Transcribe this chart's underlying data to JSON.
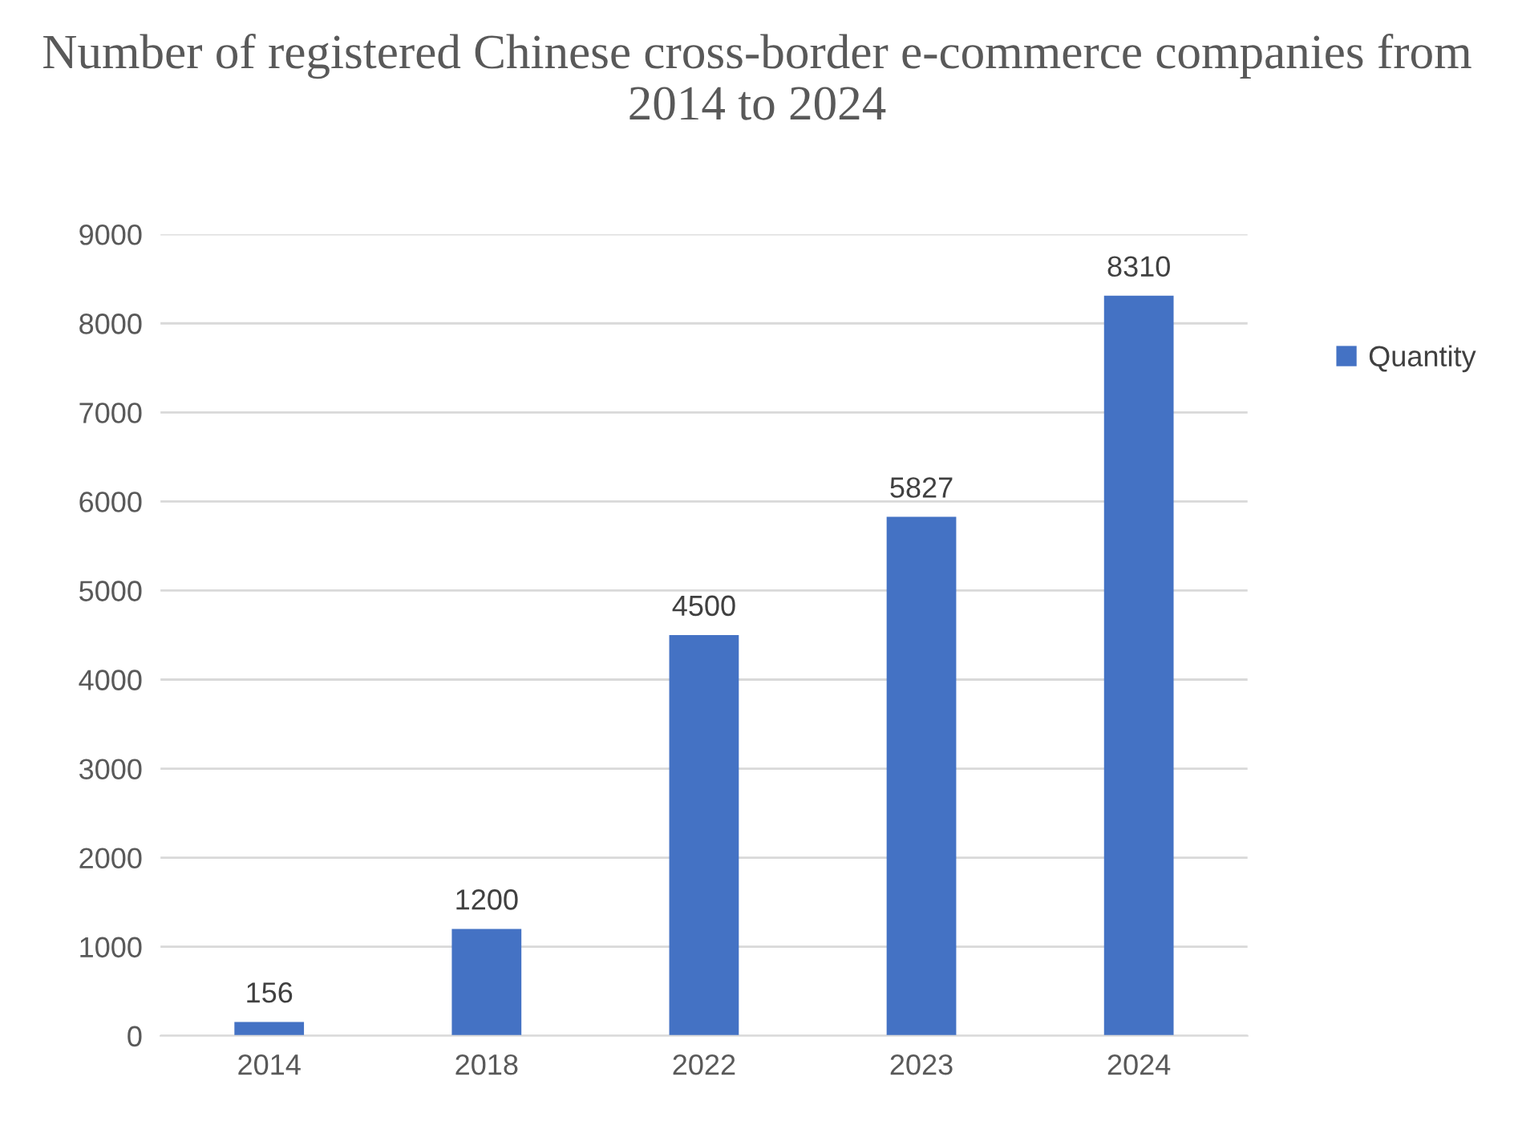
{
  "chart_data": {
    "type": "bar",
    "title": "Number of registered Chinese cross-border e-commerce companies from 2014 to 2024",
    "categories": [
      "2014",
      "2018",
      "2022",
      "2023",
      "2024"
    ],
    "series": [
      {
        "name": "Quantity",
        "color": "#4472c4",
        "values": [
          156,
          1200,
          4500,
          5827,
          8310
        ]
      }
    ],
    "ylim": [
      0,
      9000
    ],
    "yticks": [
      0,
      1000,
      2000,
      3000,
      4000,
      5000,
      6000,
      7000,
      8000,
      9000
    ],
    "grid": "y",
    "legend": "right",
    "data_labels": true
  }
}
